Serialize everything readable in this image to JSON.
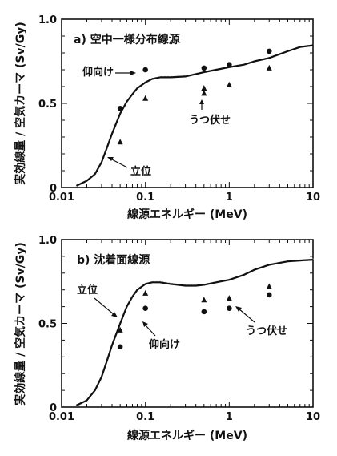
{
  "chart_data": [
    {
      "type": "scatter",
      "title": "a) 空中一様分布線源",
      "xlabel": "線源エネルギー (MeV)",
      "ylabel": "実効線量 / 空気カーマ (Sv/Gy)",
      "xscale": "log",
      "xlim": [
        0.01,
        10
      ],
      "ylim": [
        0,
        1.0
      ],
      "x_ticks": [
        "0.01",
        "0.1",
        "1",
        "10"
      ],
      "y_ticks": [
        "0",
        "0.5",
        "1.0"
      ],
      "annotations": [
        "仰向け",
        "うつ伏せ",
        "立位"
      ],
      "series": [
        {
          "marker": "line",
          "x": [
            0.015,
            0.02,
            0.025,
            0.03,
            0.035,
            0.04,
            0.05,
            0.06,
            0.07,
            0.08,
            0.1,
            0.12,
            0.15,
            0.2,
            0.3,
            0.5,
            0.7,
            1.0,
            1.5,
            2.0,
            3.0,
            5.0,
            7.0,
            10.0
          ],
          "y": [
            0.01,
            0.04,
            0.08,
            0.15,
            0.24,
            0.32,
            0.44,
            0.51,
            0.555,
            0.59,
            0.625,
            0.645,
            0.655,
            0.655,
            0.66,
            0.685,
            0.7,
            0.715,
            0.73,
            0.75,
            0.77,
            0.81,
            0.835,
            0.845
          ]
        },
        {
          "marker": "circle",
          "x": [
            0.05,
            0.1,
            0.5,
            1.0,
            3.0
          ],
          "y": [
            0.47,
            0.7,
            0.71,
            0.73,
            0.81
          ]
        },
        {
          "marker": "triangle",
          "x": [
            0.05,
            0.1,
            0.5,
            0.5,
            1.0,
            3.0
          ],
          "y": [
            0.27,
            0.53,
            0.59,
            0.56,
            0.61,
            0.71
          ]
        }
      ]
    },
    {
      "type": "scatter",
      "title": "b) 沈着面線源",
      "xlabel": "線源エネルギー (MeV)",
      "ylabel": "実効線量 / 空気カーマ (Sv/Gy)",
      "xscale": "log",
      "xlim": [
        0.01,
        10
      ],
      "ylim": [
        0,
        1.0
      ],
      "x_ticks": [
        "0.01",
        "0.1",
        "1",
        "10"
      ],
      "y_ticks": [
        "0",
        "0.5",
        "1.0"
      ],
      "annotations": [
        "立位",
        "仰向け",
        "うつ伏せ"
      ],
      "series": [
        {
          "marker": "line",
          "x": [
            0.015,
            0.02,
            0.025,
            0.03,
            0.035,
            0.04,
            0.05,
            0.06,
            0.07,
            0.08,
            0.1,
            0.12,
            0.15,
            0.2,
            0.3,
            0.4,
            0.5,
            0.7,
            1.0,
            1.5,
            2.0,
            3.0,
            5.0,
            7.0,
            10.0
          ],
          "y": [
            0.01,
            0.04,
            0.1,
            0.18,
            0.28,
            0.37,
            0.5,
            0.6,
            0.66,
            0.7,
            0.735,
            0.745,
            0.745,
            0.735,
            0.725,
            0.725,
            0.73,
            0.745,
            0.76,
            0.79,
            0.82,
            0.85,
            0.87,
            0.875,
            0.88
          ]
        },
        {
          "marker": "circle",
          "x": [
            0.05,
            0.1,
            0.5,
            1.0,
            3.0
          ],
          "y": [
            0.36,
            0.59,
            0.57,
            0.59,
            0.67
          ]
        },
        {
          "marker": "triangle",
          "x": [
            0.05,
            0.1,
            0.5,
            1.0,
            3.0
          ],
          "y": [
            0.46,
            0.68,
            0.64,
            0.65,
            0.72
          ]
        }
      ]
    }
  ]
}
